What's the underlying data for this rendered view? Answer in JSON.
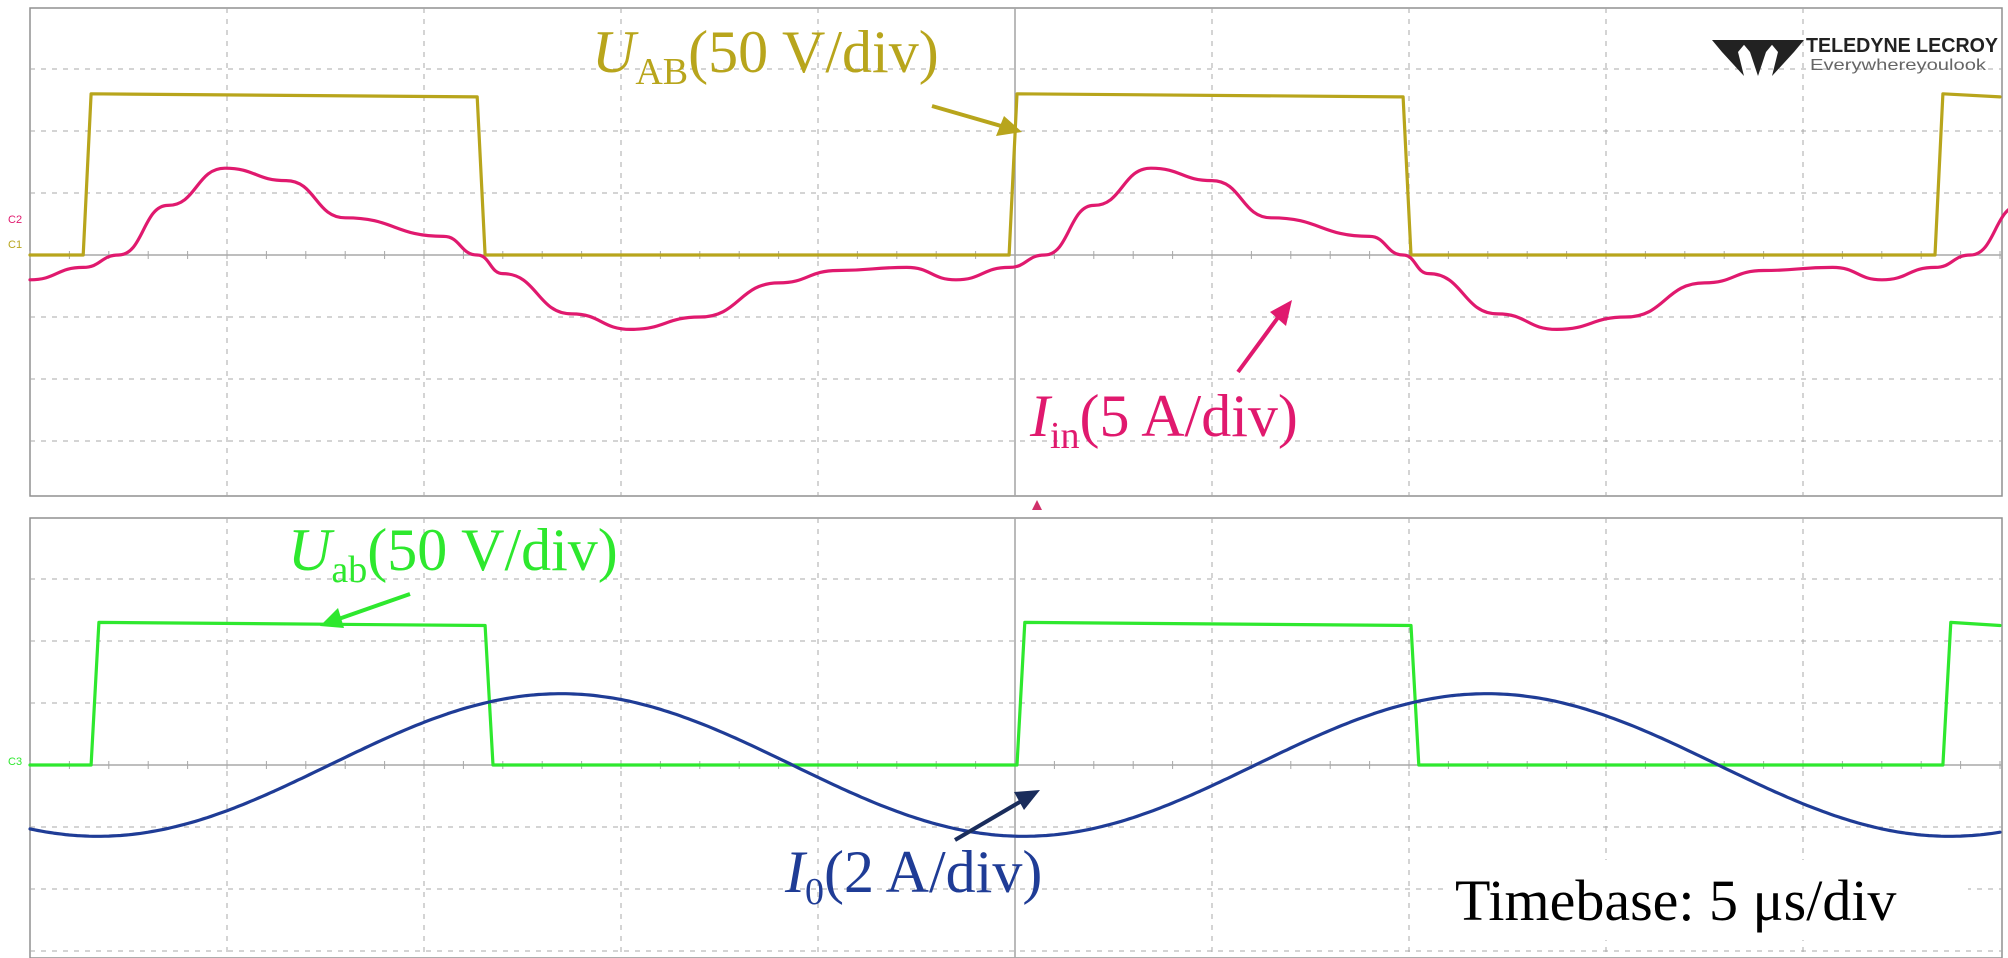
{
  "logo": {
    "brand": "TELEDYNE LECROY",
    "tagline": "Everywhereyoulook"
  },
  "timebase": "Timebase: 5 μs/div",
  "colors": {
    "U_AB": "#b8a51c",
    "I_in": "#e0196e",
    "U_ab": "#2ee82e",
    "I_0": "#1f3c96",
    "arrow_I0": "#1a2d5c",
    "grid": "#a8a8a8",
    "frame": "#909090",
    "trigger": "#d0306a"
  },
  "chart_data": [
    {
      "type": "line",
      "panel": "top",
      "title": "",
      "x_unit": "div",
      "xlim": [
        0,
        10
      ],
      "ylim": [
        -4,
        4
      ],
      "grid": true,
      "series": [
        {
          "name": "U_AB (50 V/div)",
          "symbol": "U",
          "subscript": "AB",
          "scale": "(50 V/div)",
          "color": "#b8a51c",
          "shape": "square",
          "period_div": 4.7,
          "first_rise_div": 0.27,
          "high_duration_div": 2.0,
          "low_level_div": 0,
          "high_level_div": 2.6
        },
        {
          "name": "I_in (5 A/div)",
          "symbol": "I",
          "subscript": "in",
          "scale": "(5 A/div)",
          "color": "#e0196e",
          "shape": "periodic",
          "period_div": 4.7,
          "x": [
            0.0,
            0.27,
            0.45,
            0.7,
            0.99,
            1.3,
            1.6,
            2.1,
            2.27,
            2.4,
            2.75,
            3.05,
            3.4,
            3.8,
            4.1,
            4.45,
            4.7
          ],
          "y": [
            -0.4,
            -0.2,
            0.0,
            0.8,
            1.4,
            1.2,
            0.6,
            0.3,
            0.0,
            -0.3,
            -0.95,
            -1.2,
            -1.0,
            -0.45,
            -0.25,
            -0.2,
            -0.4
          ]
        }
      ]
    },
    {
      "type": "line",
      "panel": "bottom",
      "title": "",
      "x_unit": "div",
      "xlim": [
        0,
        10
      ],
      "ylim": [
        -3,
        4
      ],
      "grid": true,
      "series": [
        {
          "name": "U_ab (50 V/div)",
          "symbol": "U",
          "subscript": "ab",
          "scale": "(50 V/div)",
          "color": "#2ee82e",
          "shape": "square",
          "period_div": 4.7,
          "first_rise_div": 0.31,
          "high_duration_div": 2.0,
          "low_level_div": 0,
          "high_level_div": 2.3
        },
        {
          "name": "I_0 (2 A/div)",
          "symbol": "I",
          "subscript": "0",
          "scale": "(2 A/div)",
          "color": "#1f3c96",
          "shape": "sine",
          "period_div": 4.7,
          "amplitude_div": 1.15,
          "zero_cross_up_div": 1.52
        }
      ]
    }
  ]
}
